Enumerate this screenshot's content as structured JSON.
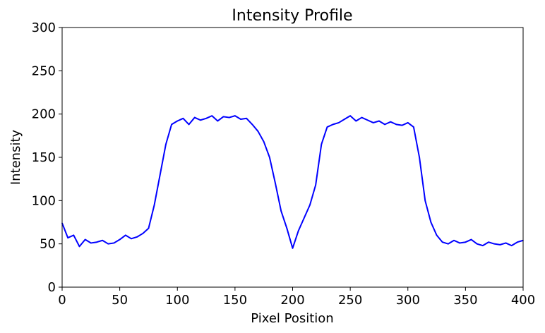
{
  "chart_data": {
    "type": "line",
    "title": "Intensity Profile",
    "xlabel": "Pixel Position",
    "ylabel": "Intensity",
    "xlim": [
      0,
      400
    ],
    "ylim": [
      0,
      300
    ],
    "xticks": [
      0,
      50,
      100,
      150,
      200,
      250,
      300,
      350,
      400
    ],
    "yticks": [
      0,
      50,
      100,
      150,
      200,
      250,
      300
    ],
    "grid": false,
    "line_color": "#0000ff",
    "series": [
      {
        "x": [
          0,
          5,
          10,
          15,
          20,
          25,
          30,
          35,
          40,
          45,
          50,
          55,
          60,
          65,
          70,
          75,
          80,
          85,
          90,
          95,
          100,
          105,
          110,
          115,
          120,
          125,
          130,
          135,
          140,
          145,
          150,
          155,
          160,
          165,
          170,
          175,
          180,
          185,
          190,
          195,
          200,
          205,
          210,
          215,
          220,
          225,
          230,
          235,
          240,
          245,
          250,
          255,
          260,
          265,
          270,
          275,
          280,
          285,
          290,
          295,
          300,
          305,
          310,
          315,
          320,
          325,
          330,
          335,
          340,
          345,
          350,
          355,
          360,
          365,
          370,
          375,
          380,
          385,
          390,
          395,
          400
        ],
        "y": [
          74,
          57,
          60,
          47,
          55,
          51,
          52,
          54,
          50,
          51,
          55,
          60,
          56,
          58,
          62,
          68,
          95,
          130,
          165,
          188,
          192,
          195,
          188,
          196,
          193,
          195,
          198,
          192,
          197,
          196,
          198,
          194,
          195,
          188,
          180,
          168,
          150,
          120,
          88,
          68,
          45,
          65,
          80,
          95,
          118,
          165,
          185,
          188,
          190,
          194,
          198,
          192,
          196,
          193,
          190,
          192,
          188,
          191,
          188,
          187,
          190,
          185,
          150,
          100,
          75,
          60,
          52,
          50,
          54,
          51,
          52,
          55,
          50,
          48,
          52,
          50,
          49,
          51,
          48,
          52,
          54
        ]
      }
    ]
  }
}
